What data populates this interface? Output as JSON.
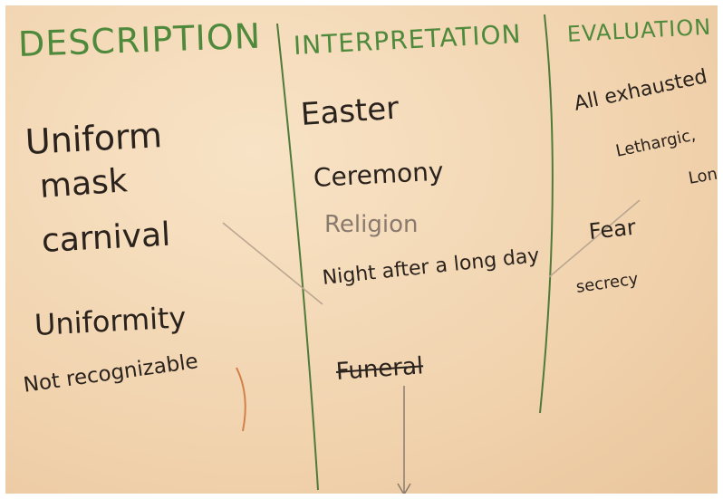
{
  "columns": [
    {
      "heading": "DESCRIPTION",
      "items": [
        "Uniform",
        "mask",
        "carnival",
        "Uniformity",
        "Not recognizable"
      ]
    },
    {
      "heading": "INTERPRETATION",
      "items": [
        "Easter",
        "Ceremony",
        "Religion",
        "Night after a long day",
        "Funeral"
      ]
    },
    {
      "heading": "EVALUATION",
      "items": [
        "All exhausted",
        "Lethargic,",
        "Lon",
        "Fear",
        "secrecy"
      ]
    }
  ]
}
